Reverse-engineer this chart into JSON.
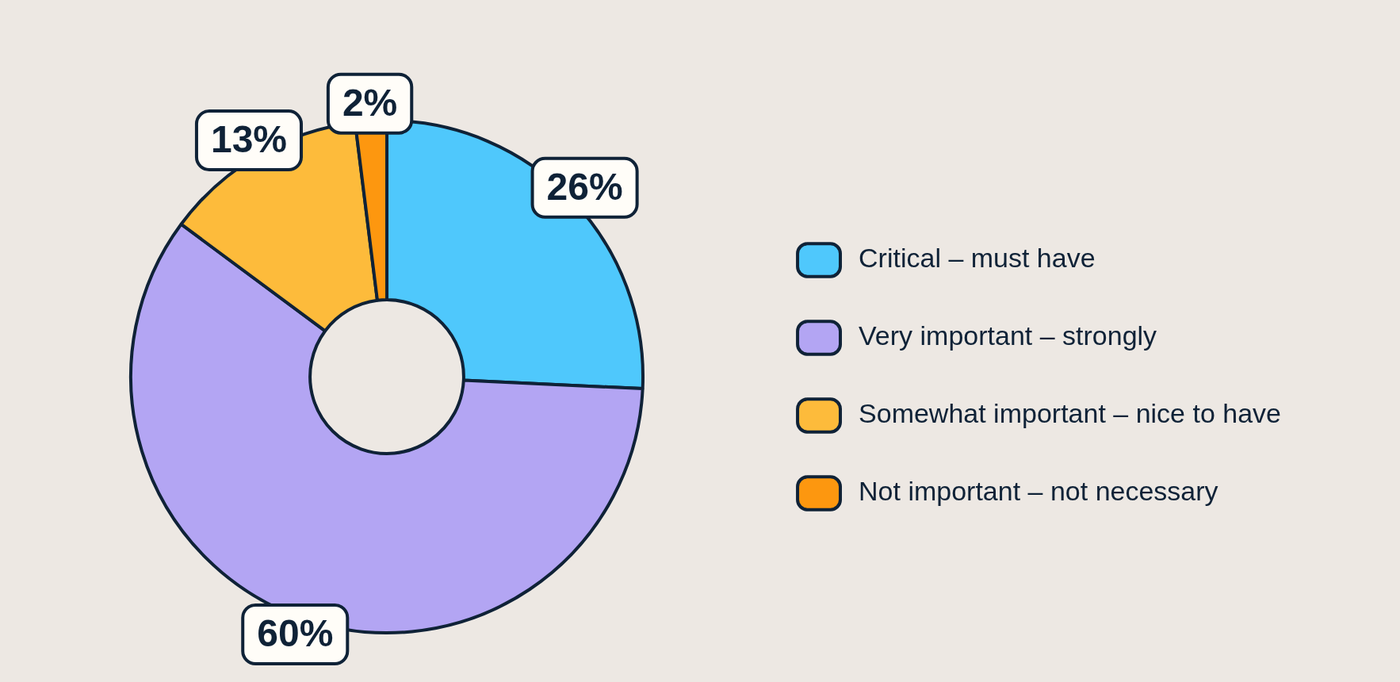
{
  "chart_data": {
    "type": "donut",
    "categories": [
      "Critical – must have",
      "Very important – strongly",
      "Somewhat important – nice to have",
      "Not important – not necessary"
    ],
    "values": [
      26,
      60,
      13,
      2
    ],
    "value_labels": [
      "26%",
      "60%",
      "13%",
      "2%"
    ],
    "colors": [
      "#4fc8fc",
      "#b3a5f3",
      "#fdbb3b",
      "#fd970f"
    ],
    "legend": "right"
  }
}
